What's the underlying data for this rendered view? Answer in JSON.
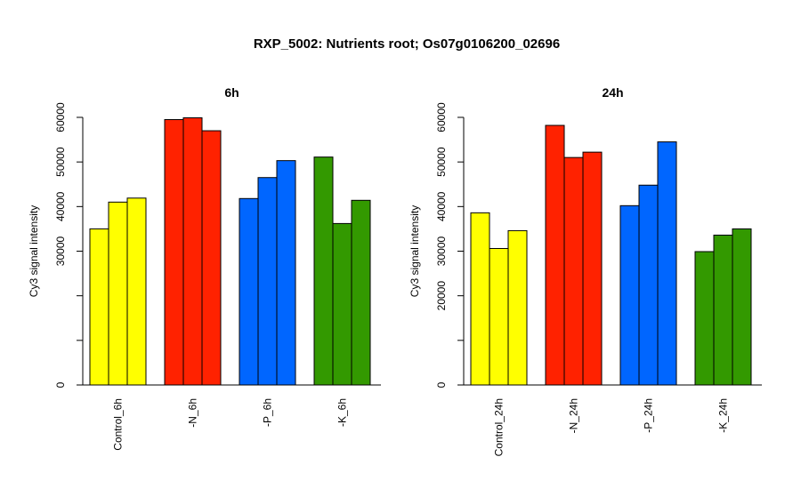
{
  "title": "RXP_5002: Nutrients root; Os07g0106200_02696",
  "chart_data": [
    {
      "type": "bar",
      "title": "6h",
      "ylabel": "Cy3 signal intensity",
      "ylim": [
        0,
        60000
      ],
      "yticks": [
        0,
        30000,
        40000,
        50000,
        60000
      ],
      "yticks_minor": [
        10000,
        20000
      ],
      "groups": [
        {
          "label": "Control_6h",
          "color": "#ffff00",
          "values": [
            35000,
            41000,
            41900
          ]
        },
        {
          "label": "-N_6h",
          "color": "#ff2200",
          "values": [
            59500,
            59900,
            57000
          ]
        },
        {
          "label": "-P_6h",
          "color": "#0066ff",
          "values": [
            41800,
            46500,
            50300
          ]
        },
        {
          "label": "-K_6h",
          "color": "#339900",
          "values": [
            51100,
            36200,
            41400
          ]
        }
      ]
    },
    {
      "type": "bar",
      "title": "24h",
      "ylabel": "Cy3 signal intensity",
      "ylim": [
        0,
        60000
      ],
      "yticks": [
        0,
        20000,
        30000,
        40000,
        50000,
        60000
      ],
      "yticks_minor": [
        10000
      ],
      "groups": [
        {
          "label": "Control_24h",
          "color": "#ffff00",
          "values": [
            38600,
            30600,
            34600
          ]
        },
        {
          "label": "-N_24h",
          "color": "#ff2200",
          "values": [
            58200,
            51000,
            52200
          ]
        },
        {
          "label": "-P_24h",
          "color": "#0066ff",
          "values": [
            40200,
            44800,
            54500
          ]
        },
        {
          "label": "-K_24h",
          "color": "#339900",
          "values": [
            29900,
            33600,
            35000
          ]
        }
      ]
    }
  ]
}
